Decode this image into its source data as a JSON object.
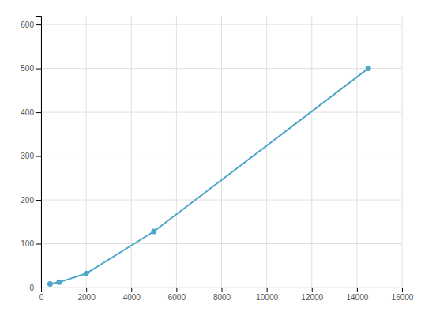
{
  "chart_data": {
    "type": "line",
    "x": [
      400,
      800,
      2000,
      5000,
      14500
    ],
    "values": [
      8,
      12,
      32,
      128,
      500
    ],
    "color": "#4da6c8",
    "marker": "circle",
    "xlim": [
      0,
      16000
    ],
    "ylim": [
      0,
      620
    ],
    "xticks": [
      0,
      2000,
      4000,
      6000,
      8000,
      10000,
      12000,
      14000,
      16000
    ],
    "yticks": [
      0,
      100,
      200,
      300,
      400,
      500,
      600
    ],
    "grid": true
  }
}
